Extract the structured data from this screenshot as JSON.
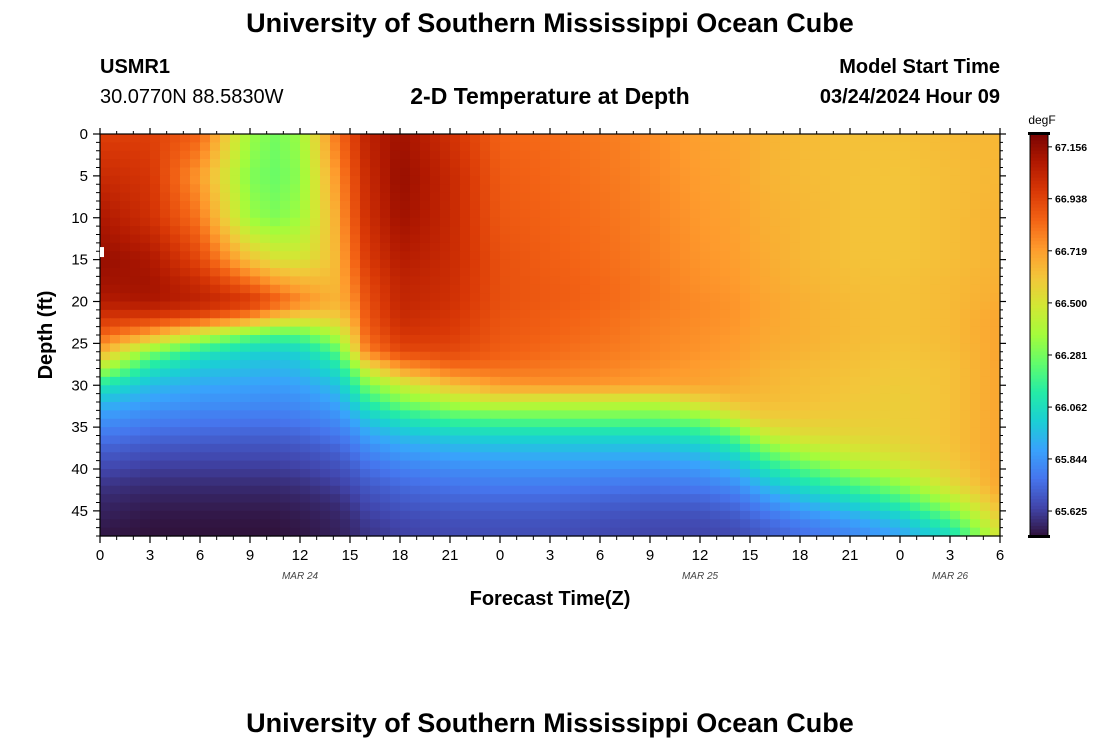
{
  "header": {
    "title": "University of Southern Mississippi Ocean Cube",
    "station": "USMR1",
    "coords": "30.0770N  88.5830W",
    "subtitle": "2-D Temperature at Depth",
    "model_label": "Model Start Time",
    "model_time": "03/24/2024 Hour 09"
  },
  "footer": {
    "title": "University of Southern Mississippi Ocean Cube"
  },
  "chart_data": {
    "type": "heatmap",
    "title": "2-D Temperature at Depth",
    "xlabel": "Forecast Time(Z)",
    "ylabel": "Depth (ft)",
    "x_range": [
      0,
      54
    ],
    "y_range": [
      0,
      48
    ],
    "x_ticks": [
      0,
      3,
      6,
      9,
      12,
      15,
      18,
      21,
      24,
      27,
      30,
      33,
      36,
      39,
      42,
      45,
      48,
      51,
      54
    ],
    "x_tick_labels": [
      "0",
      "3",
      "6",
      "9",
      "12",
      "15",
      "18",
      "21",
      "0",
      "3",
      "6",
      "9",
      "12",
      "15",
      "18",
      "21",
      "0",
      "3",
      "6"
    ],
    "y_ticks": [
      0,
      5,
      10,
      15,
      20,
      25,
      30,
      35,
      40,
      45
    ],
    "y_tick_labels": [
      "0",
      "5",
      "10",
      "15",
      "20",
      "25",
      "30",
      "35",
      "40",
      "45"
    ],
    "date_labels": [
      {
        "x": 12,
        "label": "MAR 24"
      },
      {
        "x": 36,
        "label": "MAR 25"
      },
      {
        "x": 51,
        "label": "MAR 26"
      }
    ],
    "colorbar": {
      "units": "degF",
      "min": 65.52,
      "max": 67.21,
      "ticks": [
        67.156,
        66.938,
        66.719,
        66.5,
        66.281,
        66.062,
        65.844,
        65.625
      ],
      "tick_labels": [
        "67.156",
        "66.938",
        "66.719",
        "66.500",
        "66.281",
        "66.062",
        "65.844",
        "65.625"
      ],
      "colormap": [
        "#30123b",
        "#4145ab",
        "#4675ed",
        "#39a2fc",
        "#1bcfd4",
        "#24eca6",
        "#61fc6c",
        "#a4fc3b",
        "#d1e834",
        "#f3c63a",
        "#fe9b2d",
        "#f36315",
        "#d93806",
        "#b11901",
        "#7a0402"
      ]
    },
    "data_grid": {
      "x": [
        0,
        3,
        6,
        9,
        10.5,
        12,
        14,
        15,
        16,
        18,
        21,
        24,
        27,
        30,
        33,
        36,
        38,
        39,
        40,
        42,
        45,
        48,
        51,
        54
      ],
      "y": [
        0,
        5,
        10,
        15,
        18,
        20,
        22,
        24,
        26,
        28,
        30,
        32,
        34,
        36,
        38,
        40,
        42,
        44,
        46,
        48
      ],
      "values": [
        [
          66.95,
          66.95,
          66.85,
          66.35,
          66.28,
          66.35,
          66.78,
          66.92,
          67.05,
          67.13,
          67.0,
          66.85,
          66.83,
          66.8,
          66.76,
          66.71,
          66.69,
          66.68,
          66.66,
          66.64,
          66.62,
          66.62,
          66.64,
          66.65
        ],
        [
          67.02,
          66.98,
          66.72,
          66.3,
          66.26,
          66.32,
          66.7,
          66.88,
          67.02,
          67.15,
          67.03,
          66.87,
          66.84,
          66.81,
          66.77,
          66.72,
          66.7,
          66.68,
          66.66,
          66.64,
          66.62,
          66.61,
          66.63,
          66.65
        ],
        [
          67.1,
          67.0,
          66.8,
          66.35,
          66.3,
          66.36,
          66.64,
          66.85,
          67.0,
          67.13,
          67.03,
          66.88,
          66.85,
          66.82,
          66.78,
          66.73,
          66.71,
          66.69,
          66.67,
          66.65,
          66.62,
          66.61,
          66.63,
          66.66
        ],
        [
          67.15,
          67.1,
          66.92,
          66.62,
          66.52,
          66.5,
          66.62,
          66.8,
          66.96,
          67.08,
          67.02,
          66.9,
          66.86,
          66.83,
          66.79,
          66.74,
          66.72,
          66.7,
          66.68,
          66.65,
          66.62,
          66.61,
          66.63,
          66.66
        ],
        [
          67.12,
          67.12,
          67.02,
          66.85,
          66.75,
          66.68,
          66.64,
          66.76,
          66.92,
          67.05,
          67.01,
          66.9,
          66.87,
          66.84,
          66.8,
          66.75,
          66.73,
          66.71,
          66.69,
          66.66,
          66.63,
          66.62,
          66.64,
          66.67
        ],
        [
          67.08,
          67.1,
          67.05,
          66.98,
          66.88,
          66.78,
          66.66,
          66.72,
          66.9,
          67.04,
          67.0,
          66.9,
          66.87,
          66.84,
          66.8,
          66.76,
          66.74,
          66.72,
          66.7,
          66.67,
          66.64,
          66.62,
          66.64,
          66.68
        ],
        [
          66.98,
          66.95,
          66.9,
          66.75,
          66.62,
          66.55,
          66.58,
          66.66,
          66.88,
          67.02,
          66.98,
          66.89,
          66.86,
          66.83,
          66.79,
          66.76,
          66.74,
          66.72,
          66.7,
          66.67,
          66.64,
          66.62,
          66.64,
          66.7
        ],
        [
          66.85,
          66.7,
          66.45,
          66.25,
          66.2,
          66.22,
          66.38,
          66.56,
          66.85,
          66.98,
          66.96,
          66.88,
          66.85,
          66.82,
          66.78,
          66.75,
          66.73,
          66.71,
          66.69,
          66.67,
          66.64,
          66.62,
          66.64,
          66.7
        ],
        [
          66.68,
          66.3,
          66.1,
          66.02,
          66.0,
          66.02,
          66.18,
          66.45,
          66.78,
          66.92,
          66.92,
          66.86,
          66.83,
          66.8,
          66.77,
          66.74,
          66.72,
          66.7,
          66.68,
          66.66,
          66.63,
          66.61,
          66.63,
          66.7
        ],
        [
          66.4,
          66.08,
          65.98,
          65.95,
          65.93,
          65.95,
          66.05,
          66.22,
          66.5,
          66.72,
          66.82,
          66.82,
          66.8,
          66.78,
          66.75,
          66.72,
          66.7,
          66.68,
          66.66,
          66.64,
          66.62,
          66.6,
          66.62,
          66.7
        ],
        [
          66.1,
          65.95,
          65.9,
          65.88,
          65.87,
          65.88,
          65.95,
          66.08,
          66.28,
          66.45,
          66.62,
          66.72,
          66.74,
          66.73,
          66.71,
          66.7,
          66.68,
          66.66,
          66.65,
          66.63,
          66.61,
          66.59,
          66.62,
          66.7
        ],
        [
          65.95,
          65.87,
          65.84,
          65.83,
          65.82,
          65.83,
          65.88,
          65.98,
          66.12,
          66.28,
          66.4,
          66.48,
          66.44,
          66.46,
          66.42,
          66.55,
          66.62,
          66.63,
          66.63,
          66.62,
          66.6,
          66.58,
          66.62,
          66.7
        ],
        [
          65.85,
          65.8,
          65.78,
          65.77,
          65.77,
          65.78,
          65.82,
          65.88,
          65.98,
          66.08,
          66.18,
          66.22,
          66.24,
          66.25,
          66.24,
          66.3,
          66.45,
          66.55,
          66.58,
          66.59,
          66.58,
          66.58,
          66.62,
          66.7
        ],
        [
          65.77,
          65.73,
          65.72,
          65.71,
          65.71,
          65.72,
          65.76,
          65.8,
          65.88,
          65.95,
          66.0,
          66.03,
          66.04,
          66.04,
          66.04,
          66.1,
          66.22,
          66.34,
          66.45,
          66.52,
          66.55,
          66.57,
          66.62,
          66.7
        ],
        [
          65.7,
          65.67,
          65.66,
          65.66,
          65.66,
          65.67,
          65.7,
          65.74,
          65.8,
          65.86,
          65.9,
          65.92,
          65.93,
          65.93,
          65.92,
          65.96,
          66.05,
          66.15,
          66.25,
          66.38,
          66.47,
          66.53,
          66.61,
          66.7
        ],
        [
          65.65,
          65.62,
          65.62,
          65.62,
          65.62,
          65.63,
          65.66,
          65.69,
          65.74,
          65.79,
          65.82,
          65.84,
          65.85,
          65.84,
          65.83,
          65.86,
          65.92,
          66.0,
          66.08,
          66.2,
          66.35,
          66.45,
          66.58,
          66.7
        ],
        [
          65.6,
          65.58,
          65.58,
          65.58,
          65.58,
          65.59,
          65.62,
          65.65,
          65.69,
          65.73,
          65.76,
          65.78,
          65.78,
          65.77,
          65.76,
          65.78,
          65.82,
          65.88,
          65.95,
          66.05,
          66.18,
          66.32,
          66.52,
          66.7
        ],
        [
          65.57,
          65.55,
          65.55,
          65.55,
          65.55,
          65.56,
          65.58,
          65.61,
          65.65,
          65.69,
          65.71,
          65.72,
          65.72,
          65.71,
          65.7,
          65.71,
          65.74,
          65.78,
          65.83,
          65.92,
          66.02,
          66.15,
          66.38,
          66.65
        ],
        [
          65.55,
          65.53,
          65.53,
          65.53,
          65.53,
          65.54,
          65.56,
          65.58,
          65.62,
          65.65,
          65.67,
          65.68,
          65.68,
          65.67,
          65.66,
          65.66,
          65.68,
          65.71,
          65.74,
          65.8,
          65.88,
          65.98,
          66.2,
          66.58
        ],
        [
          65.53,
          65.52,
          65.52,
          65.52,
          65.52,
          65.53,
          65.55,
          65.57,
          65.6,
          65.63,
          65.65,
          65.66,
          65.66,
          65.65,
          65.64,
          65.64,
          65.65,
          65.67,
          65.7,
          65.74,
          65.8,
          65.88,
          66.05,
          66.5
        ]
      ]
    }
  }
}
